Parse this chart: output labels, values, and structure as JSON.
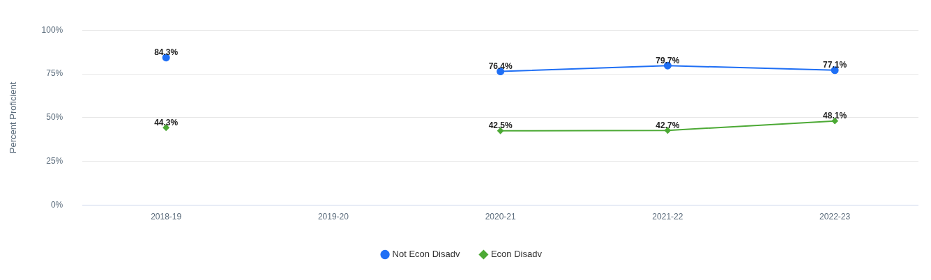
{
  "chart_data": {
    "type": "line",
    "ylabel": "Percent Proficient",
    "categories": [
      "2018-19",
      "2019-20",
      "2020-21",
      "2021-22",
      "2022-23"
    ],
    "series": [
      {
        "name": "Not Econ Disadv",
        "color": "#1f6ff5",
        "marker": "circle",
        "values": [
          84.3,
          null,
          76.4,
          79.7,
          77.1
        ],
        "value_labels": [
          "84.3%",
          null,
          "76.4%",
          "79.7%",
          "77.1%"
        ]
      },
      {
        "name": "Econ Disadv",
        "color": "#4ca935",
        "marker": "diamond",
        "values": [
          44.3,
          null,
          42.5,
          42.7,
          48.1
        ],
        "value_labels": [
          "44.3%",
          null,
          "42.5%",
          "42.7%",
          "48.1%"
        ]
      }
    ],
    "ylim": [
      0,
      100
    ],
    "yticks": [
      {
        "value": 0,
        "label": "0%"
      },
      {
        "value": 25,
        "label": "25%"
      },
      {
        "value": 50,
        "label": "50%"
      },
      {
        "value": 75,
        "label": "75%"
      },
      {
        "value": 100,
        "label": "100%"
      }
    ],
    "grid": "y",
    "legend": "bottom"
  }
}
